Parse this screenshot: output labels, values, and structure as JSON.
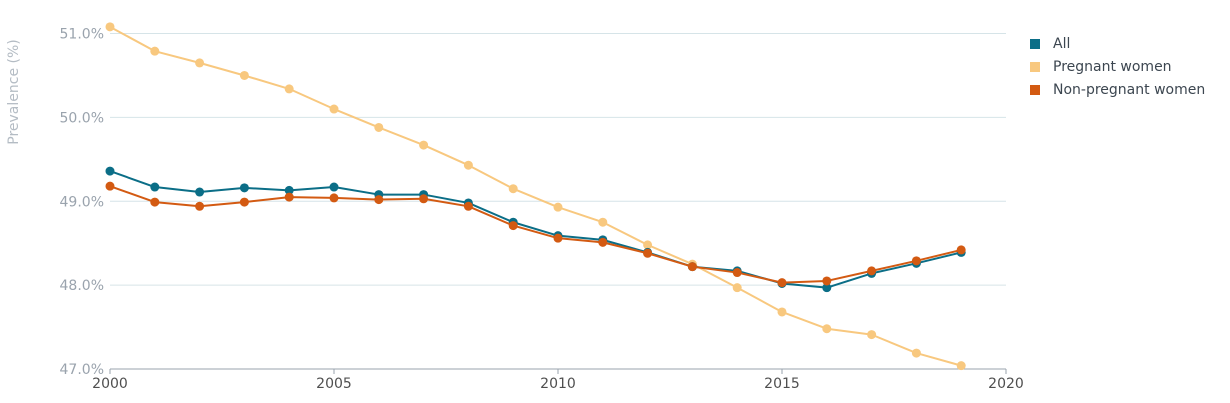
{
  "chart_data": {
    "type": "line",
    "title": "",
    "xlabel": "",
    "ylabel": "Prevalence (%)",
    "xlim": [
      2000,
      2020
    ],
    "ylim": [
      47.0,
      51.4
    ],
    "x_ticks": [
      "2000",
      "2005",
      "2010",
      "2015",
      "2020"
    ],
    "y_ticks": [
      "47.0%",
      "48.0%",
      "49.0%",
      "50.0%",
      "51.0%"
    ],
    "grid": "horizontal",
    "legend_position": "right",
    "x": [
      2000,
      2001,
      2002,
      2003,
      2004,
      2005,
      2006,
      2007,
      2008,
      2009,
      2010,
      2011,
      2012,
      2013,
      2014,
      2015,
      2016,
      2017,
      2018,
      2019
    ],
    "series": [
      {
        "name": "Pregnant women",
        "color": "#f8c87f",
        "values": [
          51.08,
          50.79,
          50.65,
          50.5,
          50.34,
          50.1,
          49.88,
          49.67,
          49.43,
          49.15,
          48.93,
          48.75,
          48.48,
          48.25,
          47.97,
          47.68,
          47.48,
          47.41,
          47.19,
          47.04
        ]
      },
      {
        "name": "All",
        "color": "#0b6e87",
        "values": [
          49.36,
          49.17,
          49.11,
          49.16,
          49.13,
          49.17,
          49.08,
          49.08,
          48.98,
          48.75,
          48.59,
          48.54,
          48.39,
          48.22,
          48.17,
          48.02,
          47.97,
          48.14,
          48.26,
          48.39
        ]
      },
      {
        "name": "Non-pregnant women",
        "color": "#d35a12",
        "values": [
          49.18,
          48.99,
          48.94,
          48.99,
          49.05,
          49.04,
          49.02,
          49.03,
          48.94,
          48.71,
          48.56,
          48.51,
          48.38,
          48.22,
          48.15,
          48.03,
          48.05,
          48.17,
          48.29,
          48.42
        ]
      }
    ],
    "legend": [
      {
        "name": "All",
        "color": "#0b6e87"
      },
      {
        "name": "Pregnant women",
        "color": "#f8c87f"
      },
      {
        "name": "Non-pregnant women",
        "color": "#d35a12"
      }
    ]
  }
}
